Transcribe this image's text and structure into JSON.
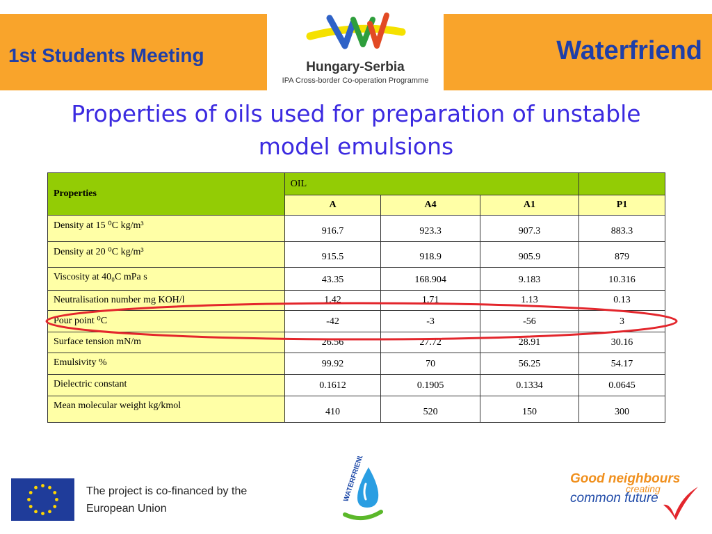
{
  "header": {
    "left_title": "1st Students Meeting",
    "right_title": "Waterfriend",
    "programme_logo": {
      "name": "Hungary-Serbia",
      "subtitle": "IPA Cross-border Co-operation Programme"
    }
  },
  "slide_title": "Properties of oils used for preparation of unstable model  emulsions",
  "table": {
    "properties_header": "Properties",
    "group_header": "OIL",
    "columns": [
      "A",
      "A4",
      "A1",
      "P1"
    ],
    "rows": [
      {
        "label": "Density at 15 ⁰C kg/m³",
        "values": [
          "916.7",
          "923.3",
          "907.3",
          "883.3"
        ]
      },
      {
        "label": "Density at 20 ⁰C kg/m³",
        "values": [
          "915.5",
          "918.9",
          "905.9",
          "879"
        ]
      },
      {
        "label": "Viscosity at 40₀C mPa s",
        "values": [
          "43.35",
          "168.904",
          "9.183",
          "10.316"
        ]
      },
      {
        "label": "Neutralisation number mg KOH/l",
        "values": [
          "1.42",
          "1.71",
          "1.13",
          "0.13"
        ]
      },
      {
        "label": "Pour point ⁰C",
        "values": [
          "-42",
          "-3",
          "-56",
          "3"
        ]
      },
      {
        "label": "Surface tension mN/m",
        "values": [
          "26.56",
          "27.72",
          "28.91",
          "30.16"
        ]
      },
      {
        "label": "Emulsivity %",
        "values": [
          "99.92",
          "70",
          "56.25",
          "54.17"
        ]
      },
      {
        "label": "Dielectric constant",
        "values": [
          "0.1612",
          "0.1905",
          "0.1334",
          "0.0645"
        ]
      },
      {
        "label": "Mean molecular weight kg/kmol",
        "values": [
          "410",
          "520",
          "150",
          "300"
        ]
      }
    ]
  },
  "footer": {
    "eu_line1": "The project is co-financed by the",
    "eu_line2": "European Union",
    "waterfriend_logo_text": "WATERFRIEND",
    "good_neighbours_1": "Good neighbours",
    "good_neighbours_2": "creating",
    "good_neighbours_3": "common future"
  },
  "colors": {
    "header_band": "#f9a42b",
    "title_blue": "#1f3fa8",
    "slide_title": "#3b2ae0",
    "table_header_green": "#93cc05",
    "table_row_yellow": "#ffffa6",
    "highlight_ellipse": "#e3262c"
  }
}
